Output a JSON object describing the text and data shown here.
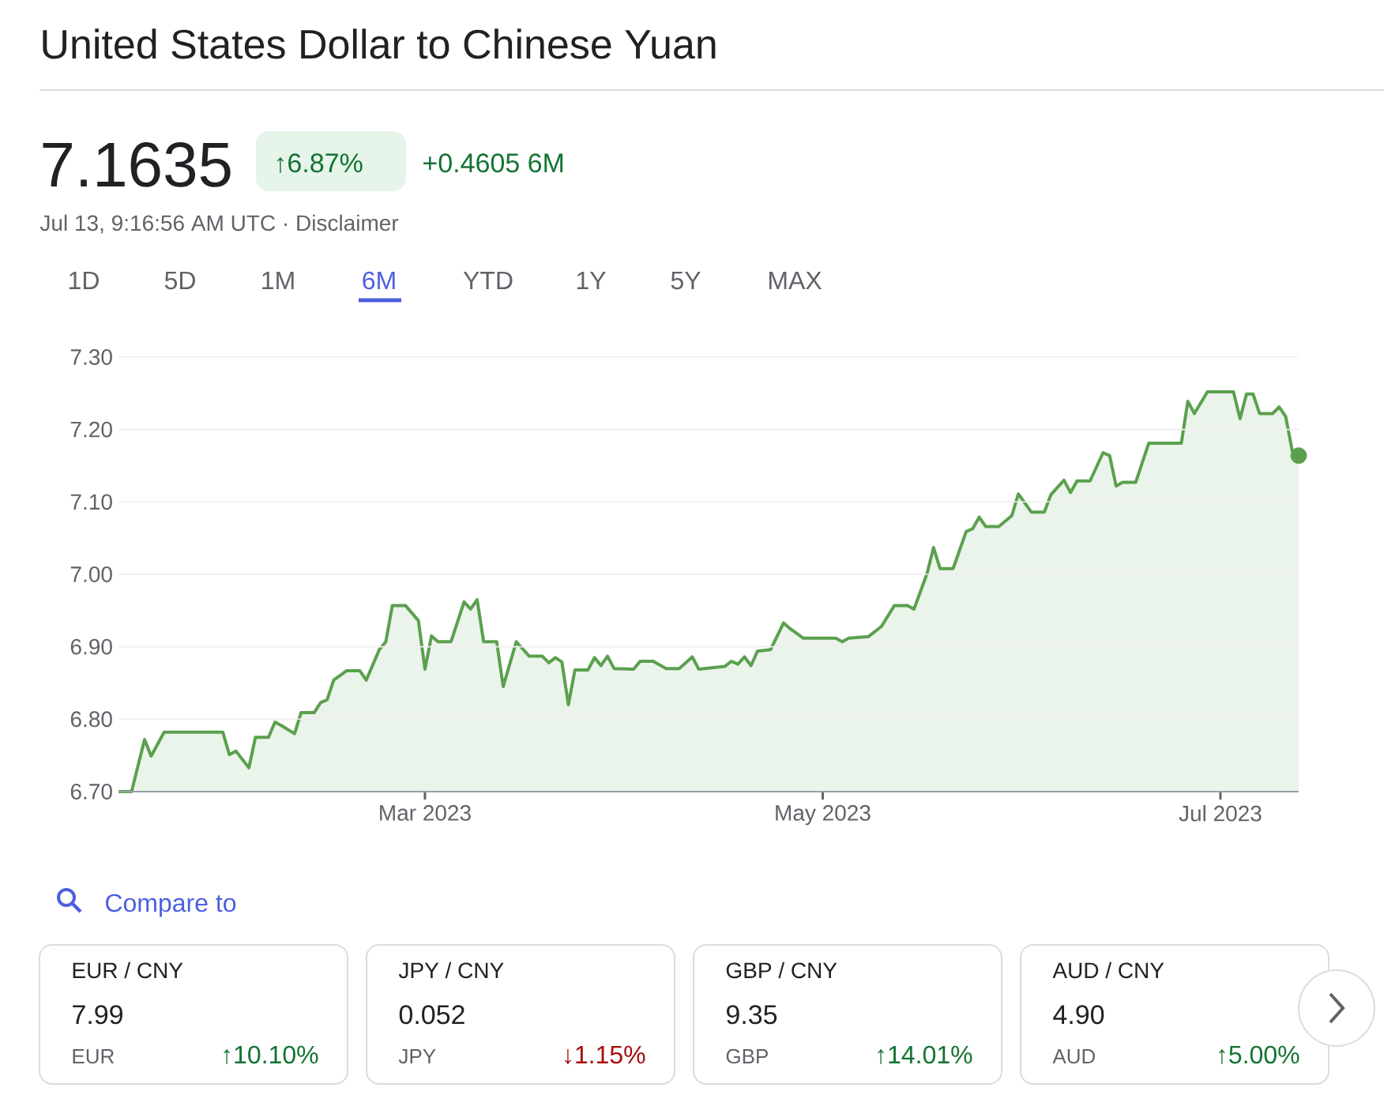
{
  "chart_data": {
    "type": "area",
    "title": "United States Dollar to Chinese Yuan",
    "x": [
      "2023-01-13",
      "2023-01-15",
      "2023-01-17",
      "2023-01-18",
      "2023-01-20",
      "2023-01-29",
      "2023-01-30",
      "2023-01-31",
      "2023-02-02",
      "2023-02-03",
      "2023-02-05",
      "2023-02-06",
      "2023-02-07",
      "2023-02-09",
      "2023-02-10",
      "2023-02-12",
      "2023-02-13",
      "2023-02-14",
      "2023-02-15",
      "2023-02-17",
      "2023-02-19",
      "2023-02-20",
      "2023-02-22",
      "2023-02-23",
      "2023-02-24",
      "2023-02-26",
      "2023-02-28",
      "2023-03-01",
      "2023-03-02",
      "2023-03-03",
      "2023-03-05",
      "2023-03-07",
      "2023-03-08",
      "2023-03-09",
      "2023-03-10",
      "2023-03-12",
      "2023-03-13",
      "2023-03-15",
      "2023-03-17",
      "2023-03-19",
      "2023-03-20",
      "2023-03-21",
      "2023-03-22",
      "2023-03-23",
      "2023-03-24",
      "2023-03-26",
      "2023-03-27",
      "2023-03-28",
      "2023-03-29",
      "2023-03-30",
      "2023-04-02",
      "2023-04-03",
      "2023-04-05",
      "2023-04-07",
      "2023-04-09",
      "2023-04-11",
      "2023-04-12",
      "2023-04-16",
      "2023-04-17",
      "2023-04-18",
      "2023-04-19",
      "2023-04-20",
      "2023-04-21",
      "2023-04-23",
      "2023-04-25",
      "2023-04-26",
      "2023-04-28",
      "2023-05-03",
      "2023-05-04",
      "2023-05-05",
      "2023-05-08",
      "2023-05-10",
      "2023-05-12",
      "2023-05-14",
      "2023-05-15",
      "2023-05-17",
      "2023-05-18",
      "2023-05-19",
      "2023-05-21",
      "2023-05-23",
      "2023-05-24",
      "2023-05-25",
      "2023-05-26",
      "2023-05-28",
      "2023-05-30",
      "2023-05-31",
      "2023-06-02",
      "2023-06-04",
      "2023-06-05",
      "2023-06-07",
      "2023-06-08",
      "2023-06-09",
      "2023-06-11",
      "2023-06-13",
      "2023-06-14",
      "2023-06-15",
      "2023-06-16",
      "2023-06-18",
      "2023-06-20",
      "2023-06-25",
      "2023-06-26",
      "2023-06-27",
      "2023-06-29",
      "2023-07-03",
      "2023-07-04",
      "2023-07-05",
      "2023-07-06",
      "2023-07-07",
      "2023-07-09",
      "2023-07-10",
      "2023-07-11",
      "2023-07-12",
      "2023-07-13"
    ],
    "series": [
      {
        "color": "#5ba04f",
        "values": [
          6.7,
          6.7,
          6.772,
          6.749,
          6.782,
          6.782,
          6.751,
          6.756,
          6.733,
          6.775,
          6.775,
          6.796,
          6.791,
          6.78,
          6.809,
          6.809,
          6.823,
          6.827,
          6.854,
          6.867,
          6.867,
          6.854,
          6.896,
          6.907,
          6.957,
          6.957,
          6.936,
          6.869,
          6.915,
          6.907,
          6.907,
          6.962,
          6.952,
          6.965,
          6.907,
          6.907,
          6.845,
          6.907,
          6.887,
          6.887,
          6.878,
          6.885,
          6.879,
          6.82,
          6.868,
          6.868,
          6.885,
          6.874,
          6.887,
          6.87,
          6.869,
          6.88,
          6.88,
          6.87,
          6.87,
          6.886,
          6.869,
          6.873,
          6.88,
          6.876,
          6.886,
          6.874,
          6.894,
          6.896,
          6.933,
          6.925,
          6.912,
          6.912,
          6.907,
          6.912,
          6.914,
          6.928,
          6.957,
          6.957,
          6.952,
          7.001,
          7.037,
          7.008,
          7.008,
          7.059,
          7.063,
          7.079,
          7.066,
          7.066,
          7.081,
          7.111,
          7.086,
          7.086,
          7.11,
          7.13,
          7.113,
          7.129,
          7.129,
          7.168,
          7.164,
          7.122,
          7.127,
          7.127,
          7.181,
          7.181,
          7.239,
          7.222,
          7.252,
          7.252,
          7.215,
          7.249,
          7.249,
          7.222,
          7.222,
          7.231,
          7.218,
          7.171,
          7.164
        ]
      },
      {
        "type": "scatter",
        "marker": "circle",
        "color": "#5ba04f",
        "x": [
          "2023-07-13"
        ],
        "values": [
          7.164
        ]
      }
    ],
    "xlim": [
      "2023-01-13",
      "2023-07-13"
    ],
    "xticks": [
      {
        "value": "2023-03-01",
        "label": "Mar 2023"
      },
      {
        "value": "2023-05-01",
        "label": "May 2023"
      },
      {
        "value": "2023-07-01",
        "label": "Jul 2023"
      }
    ],
    "ylim": [
      6.7,
      7.3
    ],
    "yticks": [
      {
        "value": 6.7,
        "label": "6.70"
      },
      {
        "value": 6.8,
        "label": "6.80"
      },
      {
        "value": 6.9,
        "label": "6.90"
      },
      {
        "value": 7.0,
        "label": "7.00"
      },
      {
        "value": 7.1,
        "label": "7.10"
      },
      {
        "value": 7.2,
        "label": "7.20"
      },
      {
        "value": 7.3,
        "label": "7.30"
      }
    ],
    "grid": "y",
    "annotations": [
      "7.1635",
      "↑6.87%",
      "+0.4605 6M",
      "Jul 13, 9:16:56 AM UTC · Disclaimer",
      "1D",
      "5D",
      "1M",
      "6M",
      "YTD",
      "1Y",
      "5Y",
      "MAX",
      "Compare to",
      "EUR / CNY",
      "7.99",
      "EUR",
      "↑10.10%",
      "JPY / CNY",
      "0.052",
      "JPY",
      "↓1.15%",
      "GBP / CNY",
      "9.35",
      "GBP",
      "↑14.01%",
      "AUD / CNY",
      "4.90",
      "AUD",
      "↑5.00%"
    ]
  }
}
